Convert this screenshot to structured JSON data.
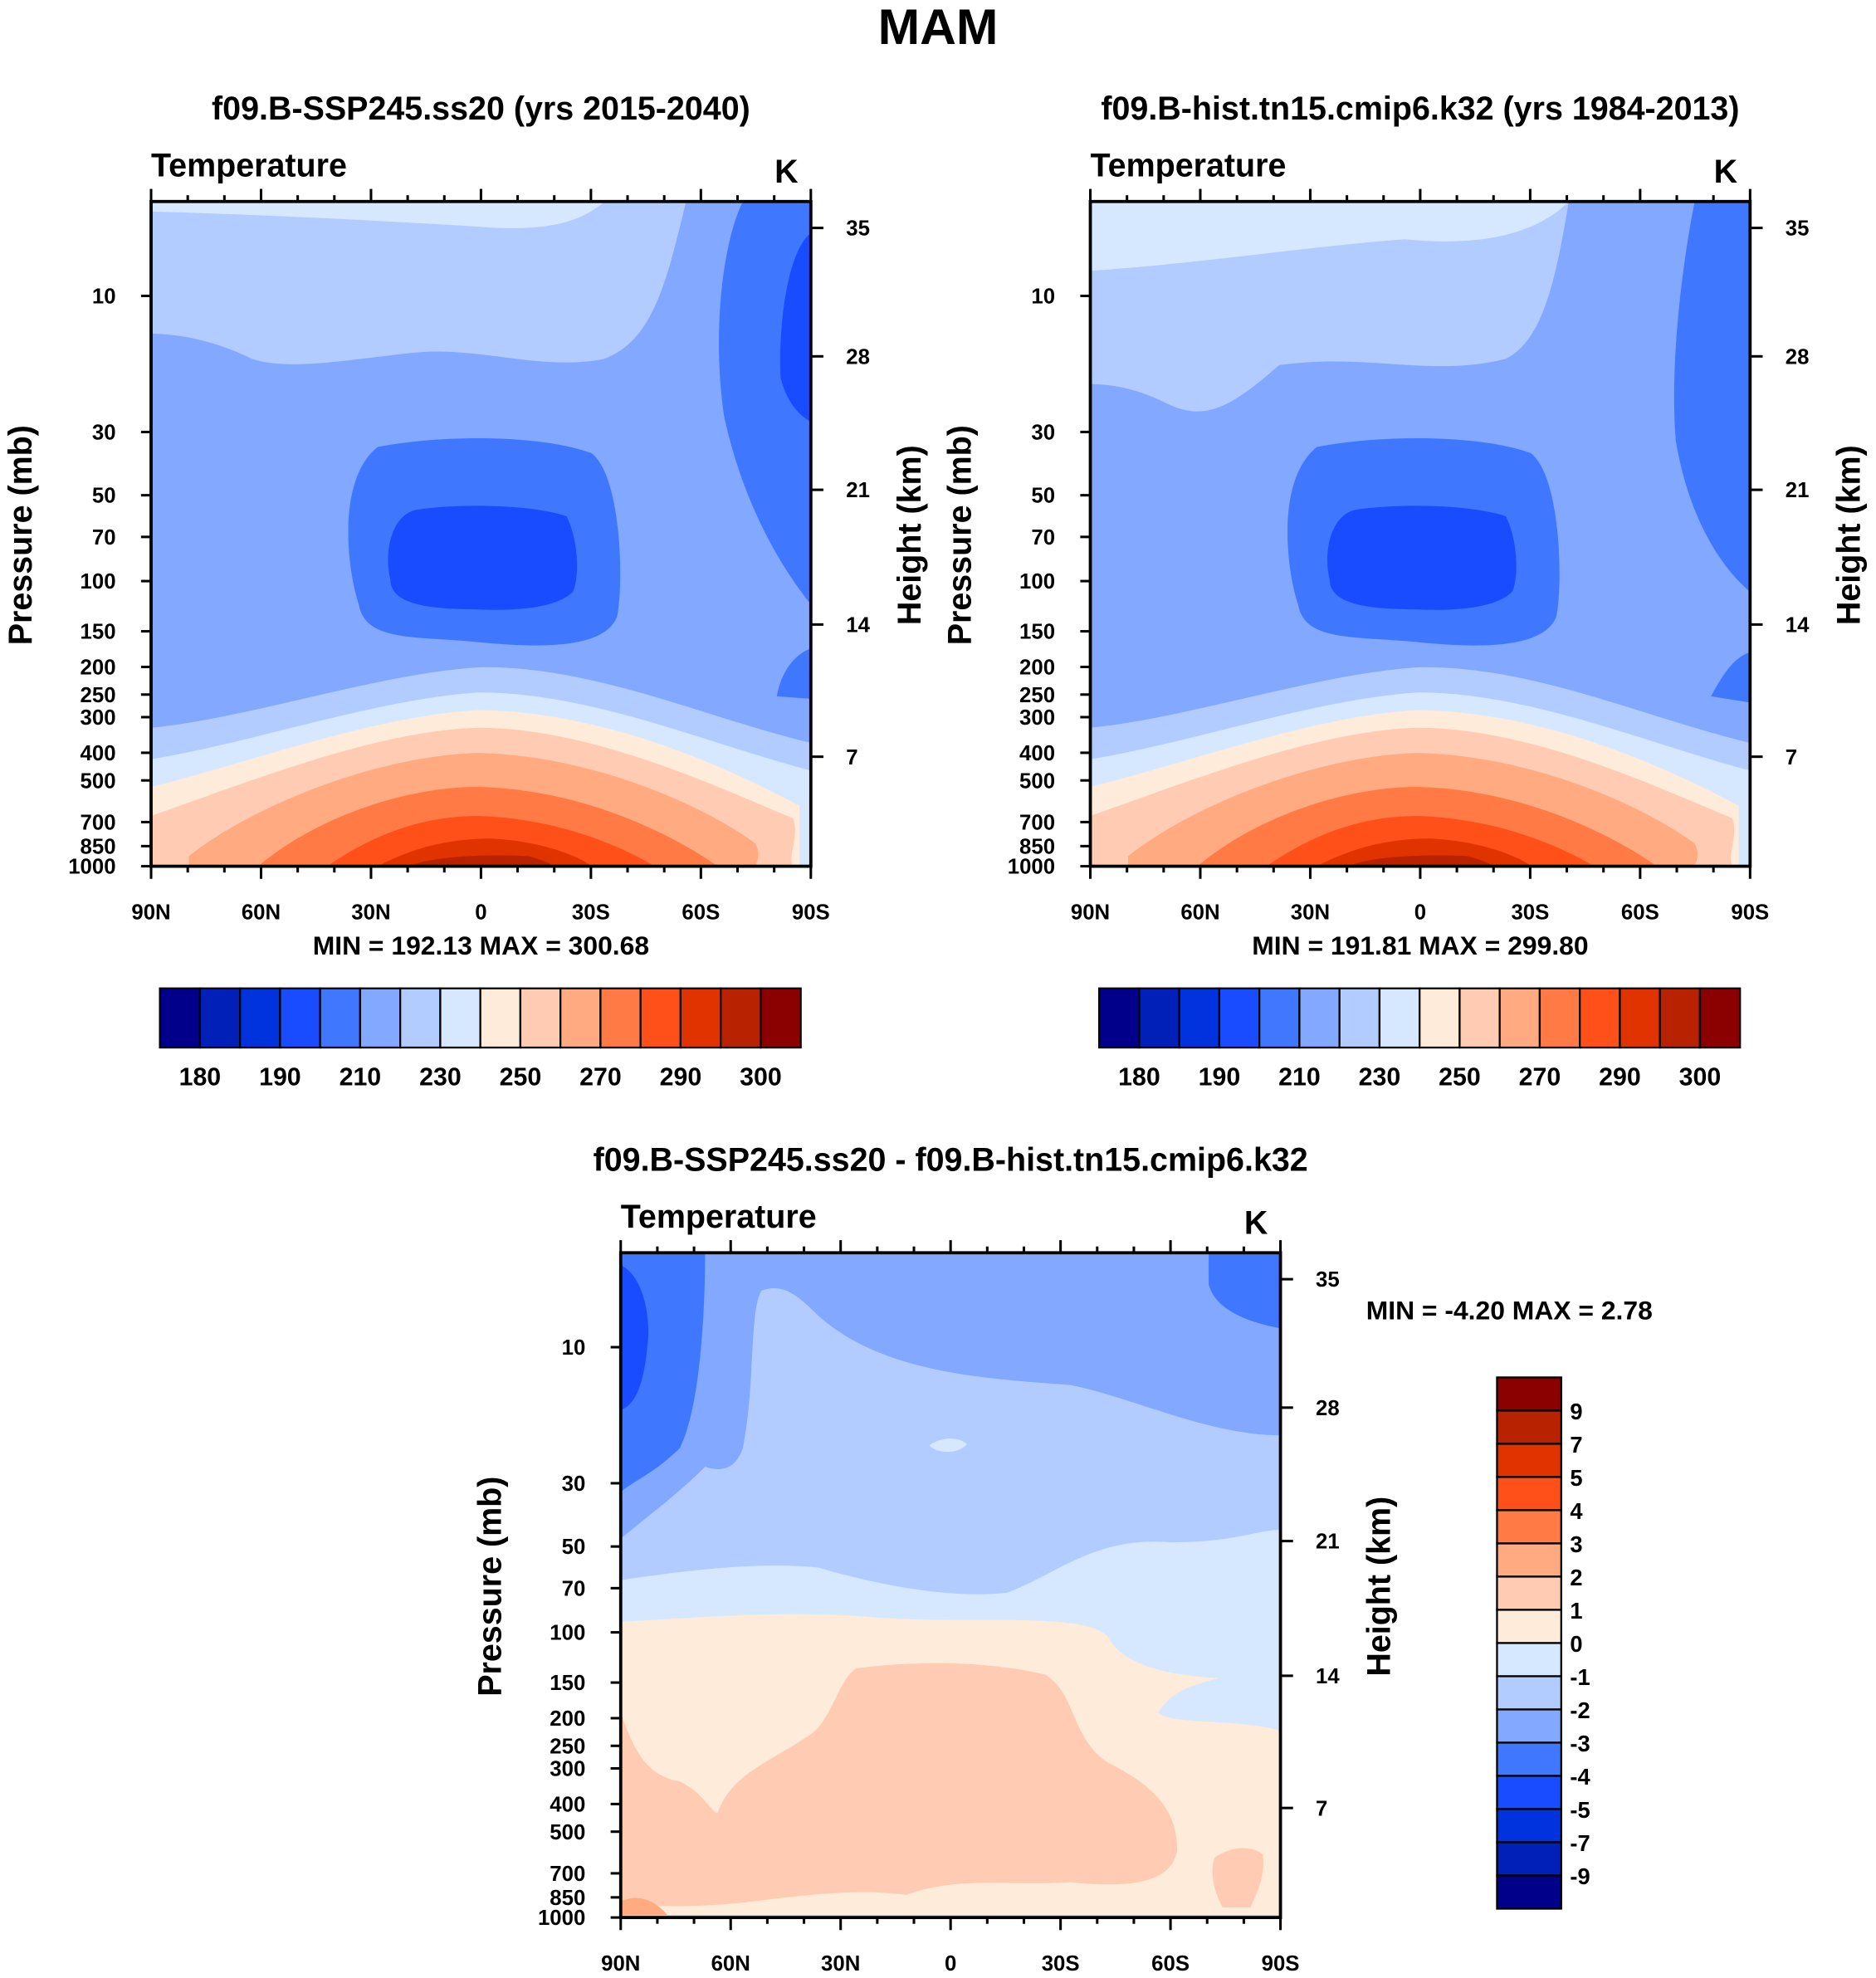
{
  "title": "MAM",
  "colors": {
    "fill_levels": [
      "#00008B",
      "#0020B8",
      "#0033DD",
      "#1A4CFF",
      "#4077FF",
      "#82A8FF",
      "#B3CCFF",
      "#D6E8FF",
      "#FFEBD9",
      "#FFCCB3",
      "#FFAA80",
      "#FF7A45",
      "#FF5019",
      "#E03300",
      "#B82200",
      "#8B0000"
    ]
  },
  "chart_data": [
    {
      "type": "heatmap",
      "title": "f09.B-SSP245.ss20 (yrs 2015-2040)",
      "left_label": "Temperature",
      "units": "K",
      "ylabel": "Pressure (mb)",
      "y2label": "Height (km)",
      "x_ticks": [
        "90N",
        "60N",
        "30N",
        "0",
        "30S",
        "60S",
        "90S"
      ],
      "y_ticks": [
        "10",
        "30",
        "50",
        "70",
        "100",
        "150",
        "200",
        "250",
        "300",
        "400",
        "500",
        "700",
        "850",
        "1000"
      ],
      "y2_ticks": [
        "35",
        "28",
        "21",
        "14",
        "7"
      ],
      "stats": "MIN = 192.13  MAX = 300.68",
      "colorbar_labels": [
        "180",
        "190",
        "210",
        "230",
        "250",
        "270",
        "290",
        "300"
      ]
    },
    {
      "type": "heatmap",
      "title": "f09.B-hist.tn15.cmip6.k32 (yrs 1984-2013)",
      "left_label": "Temperature",
      "units": "K",
      "ylabel": "Pressure (mb)",
      "y2label": "Height (km)",
      "x_ticks": [
        "90N",
        "60N",
        "30N",
        "0",
        "30S",
        "60S",
        "90S"
      ],
      "y_ticks": [
        "10",
        "30",
        "50",
        "70",
        "100",
        "150",
        "200",
        "250",
        "300",
        "400",
        "500",
        "700",
        "850",
        "1000"
      ],
      "y2_ticks": [
        "35",
        "28",
        "21",
        "14",
        "7"
      ],
      "stats": "MIN = 191.81  MAX = 299.80",
      "colorbar_labels": [
        "180",
        "190",
        "210",
        "230",
        "250",
        "270",
        "290",
        "300"
      ]
    },
    {
      "type": "heatmap",
      "title": "f09.B-SSP245.ss20 - f09.B-hist.tn15.cmip6.k32",
      "left_label": "Temperature",
      "units": "K",
      "ylabel": "Pressure (mb)",
      "y2label": "Height (km)",
      "x_ticks": [
        "90N",
        "60N",
        "30N",
        "0",
        "30S",
        "60S",
        "90S"
      ],
      "y_ticks": [
        "10",
        "30",
        "50",
        "70",
        "100",
        "150",
        "200",
        "250",
        "300",
        "400",
        "500",
        "700",
        "850",
        "1000"
      ],
      "y2_ticks": [
        "35",
        "28",
        "21",
        "14",
        "7"
      ],
      "stats": "MIN =  -4.20  MAX =   2.78",
      "colorbar_labels": [
        "9",
        "7",
        "5",
        "4",
        "3",
        "2",
        "1",
        "0",
        "-1",
        "-2",
        "-3",
        "-4",
        "-5",
        "-7",
        "-9"
      ]
    }
  ]
}
